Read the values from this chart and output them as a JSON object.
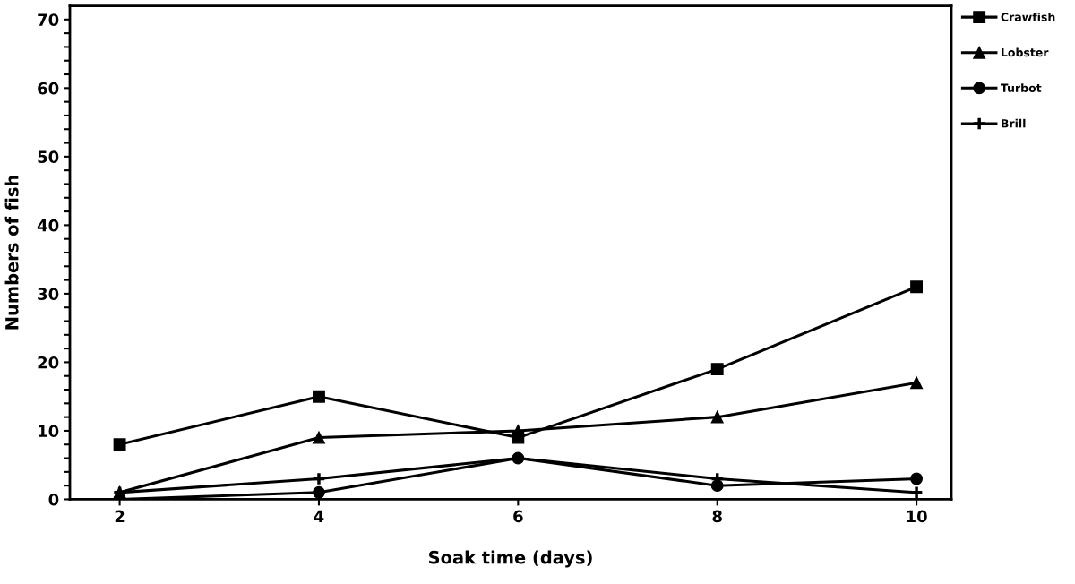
{
  "chart_data": {
    "type": "line",
    "xlabel": "Soak time (days)",
    "ylabel": "Numbers of fish",
    "x": [
      2,
      4,
      6,
      8,
      10
    ],
    "series": [
      {
        "name": "Crawfish",
        "color": "#000000",
        "marker": "square",
        "values": [
          8,
          15,
          9,
          19,
          31
        ]
      },
      {
        "name": "Lobster",
        "color": "#000000",
        "marker": "triangle",
        "values": [
          1,
          9,
          10,
          12,
          17
        ]
      },
      {
        "name": "Turbot",
        "color": "#000000",
        "marker": "circle",
        "values": [
          0,
          1,
          6,
          2,
          3
        ]
      },
      {
        "name": "Brill",
        "color": "#000000",
        "marker": "cross",
        "values": [
          1,
          3,
          6,
          3,
          1
        ]
      }
    ],
    "xlim": [
      1.5,
      10.35
    ],
    "ylim": [
      0,
      72
    ],
    "xticks": [
      2,
      4,
      6,
      8,
      10
    ],
    "yticks": [
      0,
      {
        "value": 2,
        "label": null
      },
      {
        "value": 4,
        "label": null
      },
      {
        "value": 6,
        "label": null
      },
      {
        "value": 8,
        "label": null
      },
      10,
      {
        "value": 12,
        "label": null
      },
      {
        "value": 14,
        "label": null
      },
      {
        "value": 16,
        "label": null
      },
      {
        "value": 18,
        "label": null
      },
      20,
      {
        "value": 22,
        "label": null
      },
      {
        "value": 24,
        "label": null
      },
      {
        "value": 26,
        "label": null
      },
      {
        "value": 28,
        "label": null
      },
      30,
      {
        "value": 32,
        "label": null
      },
      {
        "value": 34,
        "label": null
      },
      {
        "value": 36,
        "label": null
      },
      {
        "value": 38,
        "label": null
      },
      40,
      {
        "value": 42,
        "label": null
      },
      {
        "value": 44,
        "label": null
      },
      {
        "value": 46,
        "label": null
      },
      {
        "value": 48,
        "label": null
      },
      50,
      {
        "value": 52,
        "label": null
      },
      {
        "value": 54,
        "label": null
      },
      {
        "value": 56,
        "label": null
      },
      {
        "value": 58,
        "label": null
      },
      60,
      {
        "value": 62,
        "label": null
      },
      {
        "value": 64,
        "label": null
      },
      {
        "value": 66,
        "label": null
      },
      {
        "value": 68,
        "label": null
      },
      70
    ],
    "grid": false,
    "legend": "right",
    "line_style": "solid"
  }
}
